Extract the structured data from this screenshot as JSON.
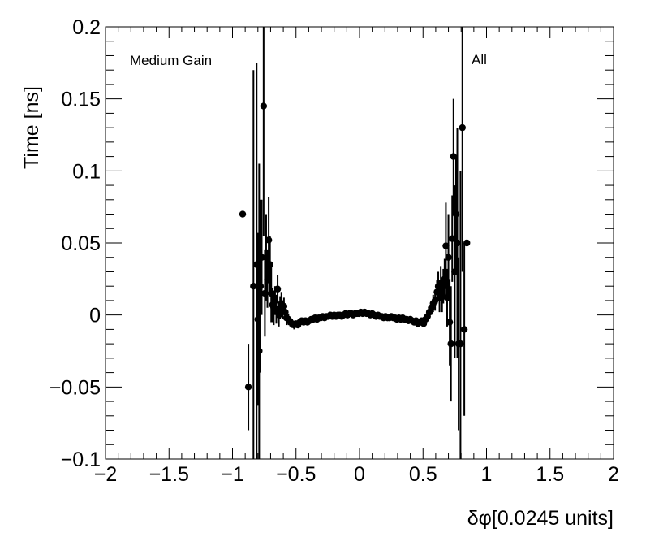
{
  "chart_data": {
    "type": "scatter",
    "xlabel": "δφ[0.0245 units]",
    "ylabel": "Time [ns]",
    "xlim": [
      -2,
      2
    ],
    "ylim": [
      -0.1,
      0.2
    ],
    "x_ticks": [
      -2,
      -1.5,
      -1,
      -0.5,
      0,
      0.5,
      1,
      1.5,
      2
    ],
    "y_ticks": [
      -0.1,
      -0.05,
      0,
      0.05,
      0.1,
      0.15,
      0.2
    ],
    "x_tick_labels": [
      "−2",
      "−1.5",
      "−1",
      "−0.5",
      "0",
      "0.5",
      "1",
      "1.5",
      "2"
    ],
    "y_tick_labels": [
      "−0.1",
      "−0.05",
      "0",
      "0.05",
      "0.1",
      "0.15",
      "0.2"
    ],
    "annotations": [
      "Medium Gain",
      "All"
    ],
    "grid": false,
    "marker_color": "#000000",
    "points": [
      {
        "x": -0.92,
        "y": 0.07,
        "err": 0.0
      },
      {
        "x": -0.875,
        "y": -0.05,
        "err": 0.03
      },
      {
        "x": -0.835,
        "y": 0.02,
        "err": 0.15
      },
      {
        "x": -0.81,
        "y": 0.035,
        "err": 0.14
      },
      {
        "x": -0.8,
        "y": -0.003,
        "err": 0.06
      },
      {
        "x": -0.79,
        "y": -0.025,
        "err": 0.13
      },
      {
        "x": -0.78,
        "y": 0.02,
        "err": 0.06
      },
      {
        "x": -0.77,
        "y": 0.04,
        "err": 0.04
      },
      {
        "x": -0.755,
        "y": 0.145,
        "err": 0.09
      },
      {
        "x": -0.745,
        "y": 0.015,
        "err": 0.03
      },
      {
        "x": -0.735,
        "y": 0.04,
        "err": 0.03
      },
      {
        "x": -0.725,
        "y": 0.025,
        "err": 0.02
      },
      {
        "x": -0.715,
        "y": 0.052,
        "err": 0.03
      },
      {
        "x": -0.705,
        "y": 0.035,
        "err": 0.02
      },
      {
        "x": -0.695,
        "y": 0.015,
        "err": 0.02
      },
      {
        "x": -0.685,
        "y": 0.007,
        "err": 0.012
      },
      {
        "x": -0.675,
        "y": 0.005,
        "err": 0.012
      },
      {
        "x": -0.665,
        "y": 0.01,
        "err": 0.01
      },
      {
        "x": -0.655,
        "y": 0.004,
        "err": 0.01
      },
      {
        "x": -0.645,
        "y": 0.018,
        "err": 0.01
      },
      {
        "x": -0.635,
        "y": 0.0,
        "err": 0.008
      },
      {
        "x": -0.625,
        "y": 0.005,
        "err": 0.008
      },
      {
        "x": -0.615,
        "y": 0.008,
        "err": 0.008
      },
      {
        "x": -0.605,
        "y": 0.003,
        "err": 0.006
      },
      {
        "x": -0.595,
        "y": 0.006,
        "err": 0.006
      },
      {
        "x": -0.585,
        "y": 0.002,
        "err": 0.005
      },
      {
        "x": -0.575,
        "y": -0.002,
        "err": 0.005
      },
      {
        "x": -0.56,
        "y": -0.003,
        "err": 0.004
      },
      {
        "x": -0.545,
        "y": -0.005,
        "err": 0.003
      },
      {
        "x": -0.53,
        "y": -0.006,
        "err": 0.003
      },
      {
        "x": -0.515,
        "y": -0.007,
        "err": 0.003
      },
      {
        "x": -0.5,
        "y": -0.006,
        "err": 0.002
      },
      {
        "x": -0.485,
        "y": -0.007,
        "err": 0.002
      },
      {
        "x": -0.47,
        "y": -0.005,
        "err": 0.002
      },
      {
        "x": -0.455,
        "y": -0.004,
        "err": 0.002
      },
      {
        "x": -0.44,
        "y": -0.005,
        "err": 0.002
      },
      {
        "x": -0.425,
        "y": -0.004,
        "err": 0.002
      },
      {
        "x": -0.41,
        "y": -0.005,
        "err": 0.002
      },
      {
        "x": -0.395,
        "y": -0.004,
        "err": 0.002
      },
      {
        "x": -0.38,
        "y": -0.003,
        "err": 0.002
      },
      {
        "x": -0.365,
        "y": -0.003,
        "err": 0.002
      },
      {
        "x": -0.35,
        "y": -0.002,
        "err": 0.002
      },
      {
        "x": -0.335,
        "y": -0.003,
        "err": 0.002
      },
      {
        "x": -0.32,
        "y": -0.002,
        "err": 0.002
      },
      {
        "x": -0.305,
        "y": -0.002,
        "err": 0.002
      },
      {
        "x": -0.29,
        "y": -0.001,
        "err": 0.002
      },
      {
        "x": -0.275,
        "y": -0.002,
        "err": 0.002
      },
      {
        "x": -0.26,
        "y": -0.001,
        "err": 0.002
      },
      {
        "x": -0.245,
        "y": -0.001,
        "err": 0.002
      },
      {
        "x": -0.23,
        "y": 0.0,
        "err": 0.002
      },
      {
        "x": -0.215,
        "y": -0.001,
        "err": 0.002
      },
      {
        "x": -0.2,
        "y": 0.0,
        "err": 0.002
      },
      {
        "x": -0.185,
        "y": -0.001,
        "err": 0.002
      },
      {
        "x": -0.17,
        "y": 0.0,
        "err": 0.002
      },
      {
        "x": -0.155,
        "y": 0.0,
        "err": 0.002
      },
      {
        "x": -0.14,
        "y": -0.001,
        "err": 0.002
      },
      {
        "x": -0.125,
        "y": 0.0,
        "err": 0.002
      },
      {
        "x": -0.11,
        "y": 0.001,
        "err": 0.002
      },
      {
        "x": -0.095,
        "y": 0.0,
        "err": 0.002
      },
      {
        "x": -0.08,
        "y": 0.001,
        "err": 0.002
      },
      {
        "x": -0.065,
        "y": 0.001,
        "err": 0.002
      },
      {
        "x": -0.05,
        "y": 0.0,
        "err": 0.002
      },
      {
        "x": -0.035,
        "y": 0.001,
        "err": 0.002
      },
      {
        "x": -0.02,
        "y": 0.001,
        "err": 0.002
      },
      {
        "x": -0.005,
        "y": 0.001,
        "err": 0.002
      },
      {
        "x": 0.01,
        "y": 0.002,
        "err": 0.002
      },
      {
        "x": 0.025,
        "y": 0.001,
        "err": 0.002
      },
      {
        "x": 0.04,
        "y": 0.002,
        "err": 0.002
      },
      {
        "x": 0.055,
        "y": 0.001,
        "err": 0.002
      },
      {
        "x": 0.07,
        "y": 0.001,
        "err": 0.002
      },
      {
        "x": 0.085,
        "y": 0.0,
        "err": 0.002
      },
      {
        "x": 0.1,
        "y": 0.001,
        "err": 0.002
      },
      {
        "x": 0.115,
        "y": 0.0,
        "err": 0.002
      },
      {
        "x": 0.13,
        "y": -0.001,
        "err": 0.002
      },
      {
        "x": 0.145,
        "y": 0.0,
        "err": 0.002
      },
      {
        "x": 0.16,
        "y": -0.001,
        "err": 0.002
      },
      {
        "x": 0.175,
        "y": -0.001,
        "err": 0.002
      },
      {
        "x": 0.19,
        "y": -0.002,
        "err": 0.002
      },
      {
        "x": 0.205,
        "y": -0.001,
        "err": 0.002
      },
      {
        "x": 0.22,
        "y": -0.002,
        "err": 0.002
      },
      {
        "x": 0.235,
        "y": -0.002,
        "err": 0.002
      },
      {
        "x": 0.25,
        "y": -0.001,
        "err": 0.002
      },
      {
        "x": 0.265,
        "y": -0.002,
        "err": 0.002
      },
      {
        "x": 0.28,
        "y": -0.002,
        "err": 0.002
      },
      {
        "x": 0.295,
        "y": -0.003,
        "err": 0.002
      },
      {
        "x": 0.31,
        "y": -0.002,
        "err": 0.002
      },
      {
        "x": 0.325,
        "y": -0.003,
        "err": 0.002
      },
      {
        "x": 0.34,
        "y": -0.002,
        "err": 0.002
      },
      {
        "x": 0.355,
        "y": -0.003,
        "err": 0.002
      },
      {
        "x": 0.37,
        "y": -0.003,
        "err": 0.002
      },
      {
        "x": 0.385,
        "y": -0.004,
        "err": 0.002
      },
      {
        "x": 0.4,
        "y": -0.003,
        "err": 0.002
      },
      {
        "x": 0.415,
        "y": -0.004,
        "err": 0.002
      },
      {
        "x": 0.43,
        "y": -0.005,
        "err": 0.002
      },
      {
        "x": 0.445,
        "y": -0.004,
        "err": 0.002
      },
      {
        "x": 0.46,
        "y": -0.006,
        "err": 0.002
      },
      {
        "x": 0.475,
        "y": -0.005,
        "err": 0.002
      },
      {
        "x": 0.49,
        "y": -0.004,
        "err": 0.002
      },
      {
        "x": 0.505,
        "y": -0.006,
        "err": 0.002
      },
      {
        "x": 0.52,
        "y": -0.003,
        "err": 0.003
      },
      {
        "x": 0.535,
        "y": -0.001,
        "err": 0.003
      },
      {
        "x": 0.55,
        "y": 0.002,
        "err": 0.004
      },
      {
        "x": 0.565,
        "y": 0.005,
        "err": 0.005
      },
      {
        "x": 0.58,
        "y": 0.008,
        "err": 0.006
      },
      {
        "x": 0.595,
        "y": 0.01,
        "err": 0.007
      },
      {
        "x": 0.61,
        "y": 0.016,
        "err": 0.008
      },
      {
        "x": 0.62,
        "y": 0.02,
        "err": 0.01
      },
      {
        "x": 0.63,
        "y": 0.012,
        "err": 0.01
      },
      {
        "x": 0.64,
        "y": 0.022,
        "err": 0.012
      },
      {
        "x": 0.65,
        "y": 0.014,
        "err": 0.012
      },
      {
        "x": 0.66,
        "y": 0.02,
        "err": 0.012
      },
      {
        "x": 0.67,
        "y": 0.025,
        "err": 0.014
      },
      {
        "x": 0.68,
        "y": 0.048,
        "err": 0.03
      },
      {
        "x": 0.69,
        "y": 0.012,
        "err": 0.02
      },
      {
        "x": 0.7,
        "y": 0.04,
        "err": 0.03
      },
      {
        "x": 0.71,
        "y": -0.005,
        "err": 0.03
      },
      {
        "x": 0.72,
        "y": -0.02,
        "err": 0.04
      },
      {
        "x": 0.73,
        "y": 0.053,
        "err": 0.03
      },
      {
        "x": 0.74,
        "y": 0.11,
        "err": 0.04
      },
      {
        "x": 0.75,
        "y": 0.03,
        "err": 0.06
      },
      {
        "x": 0.76,
        "y": 0.07,
        "err": 0.04
      },
      {
        "x": 0.77,
        "y": 0.05,
        "err": 0.08
      },
      {
        "x": 0.78,
        "y": -0.02,
        "err": 0.06
      },
      {
        "x": 0.795,
        "y": -0.02,
        "err": 0.12
      },
      {
        "x": 0.81,
        "y": 0.13,
        "err": 0.1
      },
      {
        "x": 0.825,
        "y": -0.01,
        "err": 0.06
      },
      {
        "x": 0.845,
        "y": 0.05,
        "err": 0.0
      }
    ]
  }
}
